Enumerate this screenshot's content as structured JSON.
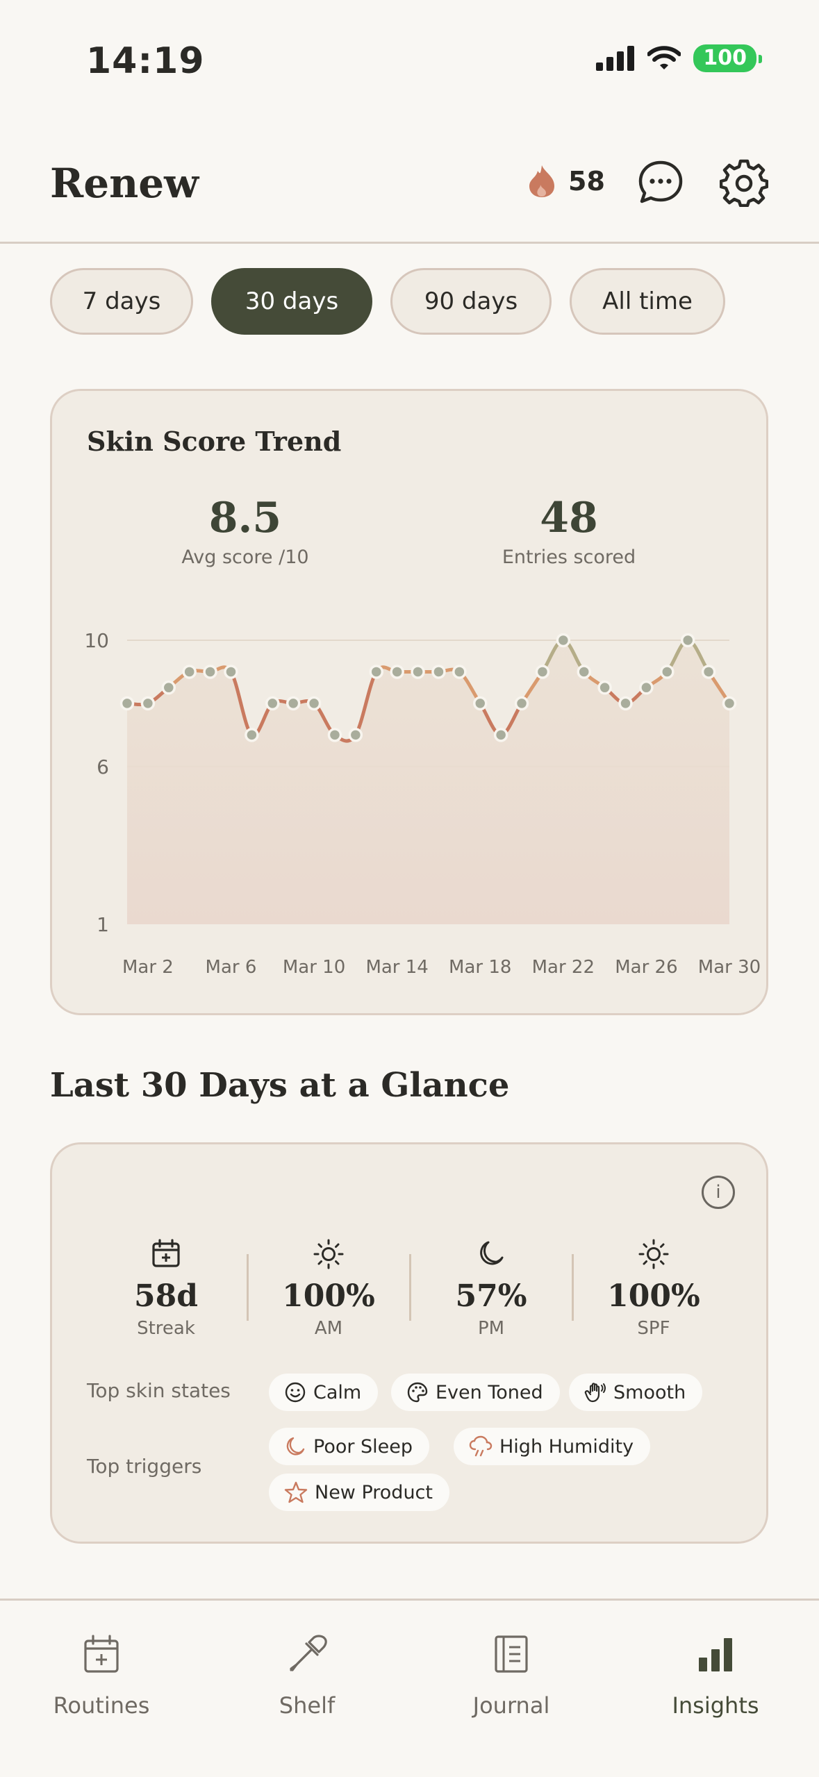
{
  "status_bar": {
    "time": "14:19",
    "battery": "100"
  },
  "header": {
    "title": "Renew",
    "streak_count": "58"
  },
  "range_tabs": [
    {
      "label": "7 days",
      "active": false
    },
    {
      "label": "30 days",
      "active": true
    },
    {
      "label": "90 days",
      "active": false
    },
    {
      "label": "All time",
      "active": false
    }
  ],
  "trend_card": {
    "title": "Skin Score Trend",
    "avg_score": "8.5",
    "avg_label": "Avg score /10",
    "entries": "48",
    "entries_label": "Entries scored"
  },
  "chart_data": {
    "type": "line",
    "title": "Skin Score Trend",
    "x": [
      "Mar 1",
      "Mar 2",
      "Mar 3",
      "Mar 4",
      "Mar 5",
      "Mar 6",
      "Mar 7",
      "Mar 8",
      "Mar 9",
      "Mar 10",
      "Mar 11",
      "Mar 12",
      "Mar 13",
      "Mar 14",
      "Mar 15",
      "Mar 16",
      "Mar 17",
      "Mar 18",
      "Mar 19",
      "Mar 20",
      "Mar 21",
      "Mar 22",
      "Mar 23",
      "Mar 24",
      "Mar 25",
      "Mar 26",
      "Mar 27",
      "Mar 28",
      "Mar 29",
      "Mar 30"
    ],
    "values": [
      8,
      8,
      8.5,
      9,
      9,
      9,
      7,
      8,
      8,
      8,
      7,
      7,
      9,
      9,
      9,
      9,
      9,
      8,
      7,
      8,
      9,
      10,
      9,
      8.5,
      8,
      8.5,
      9,
      10,
      9,
      8
    ],
    "x_tick_labels": [
      "Mar 2",
      "Mar 6",
      "Mar 10",
      "Mar 14",
      "Mar 18",
      "Mar 22",
      "Mar 26",
      "Mar 30"
    ],
    "y_tick_labels": [
      "10",
      "6",
      "1"
    ],
    "ylim": [
      1,
      10
    ],
    "grid": true,
    "colors": {
      "low": "#c97a5f",
      "mid": "#d99a6e",
      "high": "#b5ad88",
      "point": "#a9ad9c",
      "fill": "#ead9cf"
    }
  },
  "glance": {
    "title": "Last 30 Days at a Glance",
    "metrics": [
      {
        "icon": "calendar-icon",
        "value": "58d",
        "label": "Streak"
      },
      {
        "icon": "sun-icon",
        "value": "100%",
        "label": "AM"
      },
      {
        "icon": "moon-icon",
        "value": "57%",
        "label": "PM"
      },
      {
        "icon": "sun-icon",
        "value": "100%",
        "label": "SPF"
      }
    ],
    "skin_states_label": "Top skin states",
    "skin_states": [
      {
        "icon": "smile-icon",
        "label": "Calm"
      },
      {
        "icon": "palette-icon",
        "label": "Even Toned"
      },
      {
        "icon": "hand-icon",
        "label": "Smooth"
      }
    ],
    "triggers_label": "Top triggers",
    "triggers": [
      {
        "icon": "moon-icon",
        "label": "Poor Sleep"
      },
      {
        "icon": "cloud-rain-icon",
        "label": "High Humidity"
      },
      {
        "icon": "star-icon",
        "label": "New Product"
      }
    ]
  },
  "tab_bar": [
    {
      "icon": "calendar-plus-icon",
      "label": "Routines",
      "active": false
    },
    {
      "icon": "dropper-icon",
      "label": "Shelf",
      "active": false
    },
    {
      "icon": "journal-icon",
      "label": "Journal",
      "active": false
    },
    {
      "icon": "bar-chart-icon",
      "label": "Insights",
      "active": true
    }
  ]
}
